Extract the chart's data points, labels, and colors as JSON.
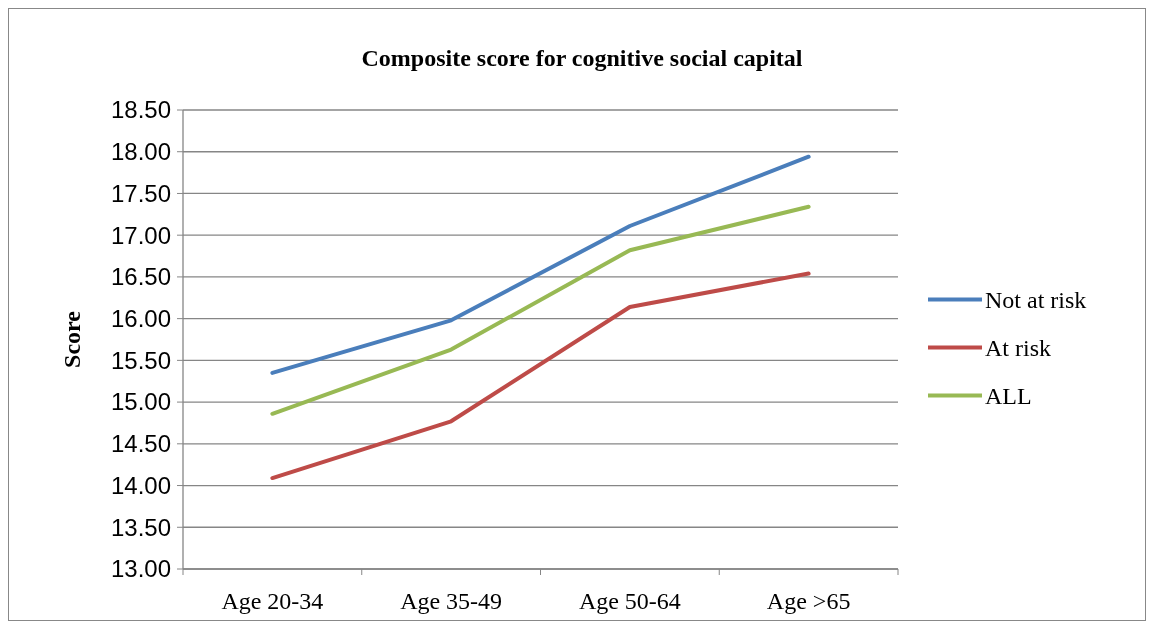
{
  "chart_data": {
    "type": "line",
    "title": "Composite score for cognitive social capital",
    "ylabel": "Score",
    "categories": [
      "Age 20-34",
      "Age 35-49",
      "Age 50-64",
      "Age >65"
    ],
    "series": [
      {
        "name": "Not at risk",
        "color": "#4a7ebb",
        "values": [
          15.35,
          15.98,
          17.11,
          17.94
        ]
      },
      {
        "name": "At risk",
        "color": "#be4b48",
        "values": [
          14.09,
          14.77,
          16.14,
          16.54
        ]
      },
      {
        "name": "ALL",
        "color": "#98b954",
        "values": [
          14.86,
          15.63,
          16.82,
          17.34
        ]
      }
    ],
    "ylim": [
      13,
      18.5
    ],
    "yticks": [
      {
        "value": 13,
        "label": "13.00"
      },
      {
        "value": 13.5,
        "label": "13.50"
      },
      {
        "value": 14,
        "label": "14.00"
      },
      {
        "value": 14.5,
        "label": "14.50"
      },
      {
        "value": 15,
        "label": "15.00"
      },
      {
        "value": 15.5,
        "label": "15.50"
      },
      {
        "value": 16,
        "label": "16.00"
      },
      {
        "value": 16.5,
        "label": "16.50"
      },
      {
        "value": 17,
        "label": "17.00"
      },
      {
        "value": 17.5,
        "label": "17.50"
      },
      {
        "value": 18,
        "label": "18.00"
      },
      {
        "value": 18.5,
        "label": "18.50"
      }
    ],
    "grid": "y",
    "legend": "right",
    "marker": "none",
    "line_style": "solid"
  }
}
